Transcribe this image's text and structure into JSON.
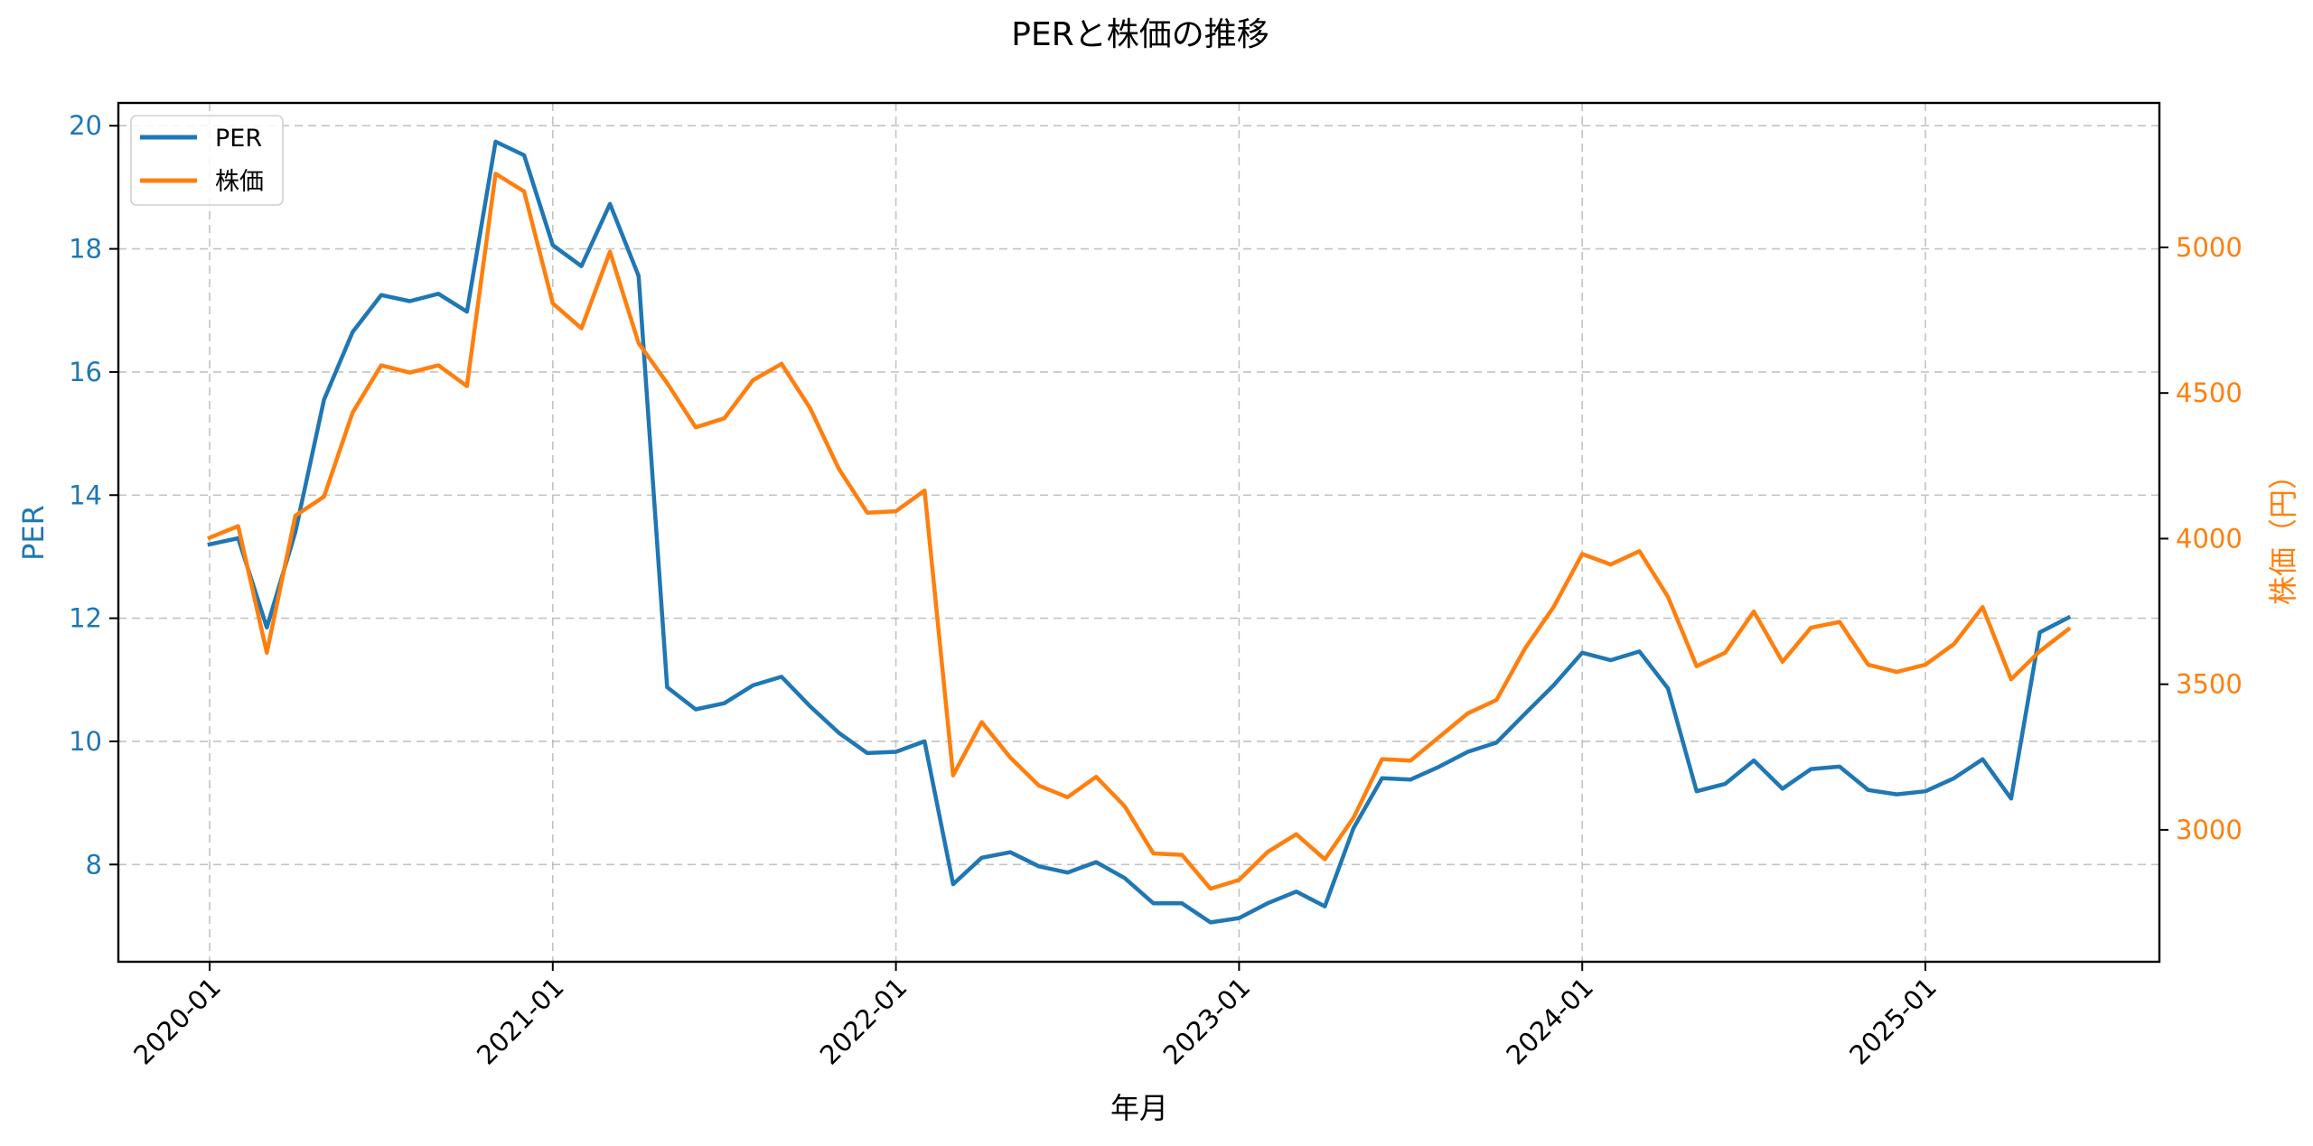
{
  "chart_data": {
    "type": "line",
    "title": "PERと株価の推移",
    "xlabel": "年月",
    "ylabel": "PER",
    "ylabel_right": "株価（円）",
    "x_tick_labels": [
      "2020-01",
      "2021-01",
      "2022-01",
      "2023-01",
      "2024-01",
      "2025-01"
    ],
    "y_ticks_left": [
      8,
      10,
      12,
      14,
      16,
      18,
      20
    ],
    "y_ticks_right": [
      3000,
      3500,
      4000,
      4500,
      5000
    ],
    "ylim_left": [
      6.42,
      20.37
    ],
    "ylim_right": [
      2547,
      5496
    ],
    "grid": true,
    "legend_position": "upper left",
    "x": [
      "2020-01",
      "2020-02",
      "2020-03",
      "2020-04",
      "2020-05",
      "2020-06",
      "2020-07",
      "2020-08",
      "2020-09",
      "2020-10",
      "2020-11",
      "2020-12",
      "2021-01",
      "2021-02",
      "2021-03",
      "2021-04",
      "2021-05",
      "2021-06",
      "2021-07",
      "2021-08",
      "2021-09",
      "2021-10",
      "2021-11",
      "2021-12",
      "2022-01",
      "2022-02",
      "2022-03",
      "2022-04",
      "2022-05",
      "2022-06",
      "2022-07",
      "2022-08",
      "2022-09",
      "2022-10",
      "2022-11",
      "2022-12",
      "2023-01",
      "2023-02",
      "2023-03",
      "2023-04",
      "2023-05",
      "2023-06",
      "2023-07",
      "2023-08",
      "2023-09",
      "2023-10",
      "2023-11",
      "2023-12",
      "2024-01",
      "2024-02",
      "2024-03",
      "2024-04",
      "2024-05",
      "2024-06",
      "2024-07",
      "2024-08",
      "2024-09",
      "2024-10",
      "2024-11",
      "2024-12",
      "2025-01",
      "2025-02",
      "2025-03",
      "2025-04",
      "2025-05",
      "2025-06"
    ],
    "series": [
      {
        "name": "PER",
        "axis": "left",
        "color": "#1f77b4",
        "values": [
          13.2,
          13.3,
          11.85,
          13.4,
          15.55,
          16.65,
          17.25,
          17.15,
          17.27,
          16.98,
          19.74,
          19.52,
          18.06,
          17.72,
          18.73,
          17.56,
          10.88,
          10.52,
          10.62,
          10.91,
          11.05,
          10.57,
          10.14,
          9.81,
          9.83,
          10.0,
          7.68,
          8.11,
          8.2,
          7.97,
          7.87,
          8.04,
          7.78,
          7.37,
          7.37,
          7.06,
          7.13,
          7.37,
          7.56,
          7.32,
          8.59,
          9.4,
          9.38,
          9.59,
          9.83,
          9.98,
          10.45,
          10.91,
          11.44,
          11.32,
          11.46,
          10.86,
          9.19,
          9.31,
          9.69,
          9.23,
          9.55,
          9.59,
          9.21,
          9.14,
          9.19,
          9.4,
          9.71,
          9.07,
          11.77,
          12.01
        ]
      },
      {
        "name": "株価",
        "axis": "right",
        "color": "#ff7f0e",
        "values": [
          4003,
          4043,
          3608,
          4079,
          4144,
          4433,
          4595,
          4570,
          4595,
          4524,
          5253,
          5192,
          4808,
          4722,
          4985,
          4671,
          4534,
          4382,
          4413,
          4544,
          4600,
          4448,
          4240,
          4089,
          4094,
          4165,
          3187,
          3370,
          3248,
          3152,
          3112,
          3182,
          3081,
          2919,
          2914,
          2798,
          2828,
          2924,
          2985,
          2899,
          3041,
          3243,
          3238,
          3319,
          3400,
          3446,
          3623,
          3765,
          3947,
          3911,
          3957,
          3800,
          3562,
          3608,
          3750,
          3577,
          3694,
          3714,
          3567,
          3542,
          3567,
          3638,
          3765,
          3517,
          3613,
          3689
        ]
      }
    ]
  },
  "colors": {
    "per": "#1f77b4",
    "price": "#ff7f0e",
    "grid": "#b0b0b0",
    "axis": "#000000"
  }
}
